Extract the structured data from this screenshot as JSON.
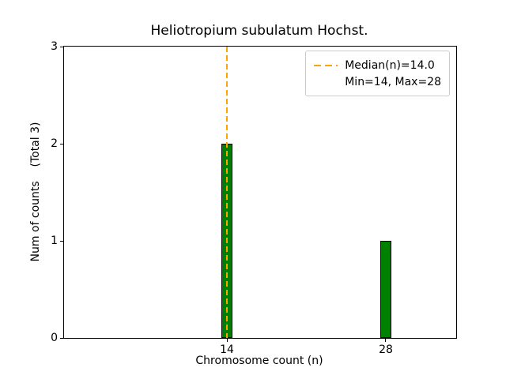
{
  "chart_data": {
    "type": "bar",
    "title": "Heliotropium subulatum Hochst.",
    "xlabel": "Chromosome count (n)",
    "ylabel": "Num of counts    (Total 3)",
    "categories": [
      14,
      28
    ],
    "values": [
      2,
      1
    ],
    "bar_width_units": 1.0,
    "bar_color": "#008000",
    "bar_edge_color": "#000000",
    "median": 14.0,
    "median_line_color": "#FFA500",
    "x_ticks": [
      14,
      28
    ],
    "y_ticks": [
      0,
      1,
      2,
      3
    ],
    "xlim": [
      -0.35,
      34.2
    ],
    "ylim": [
      0,
      3
    ],
    "grid": false,
    "legend": {
      "position": "upper right",
      "entries": [
        "Median(n)=14.0",
        "Min=14, Max=28"
      ]
    }
  }
}
